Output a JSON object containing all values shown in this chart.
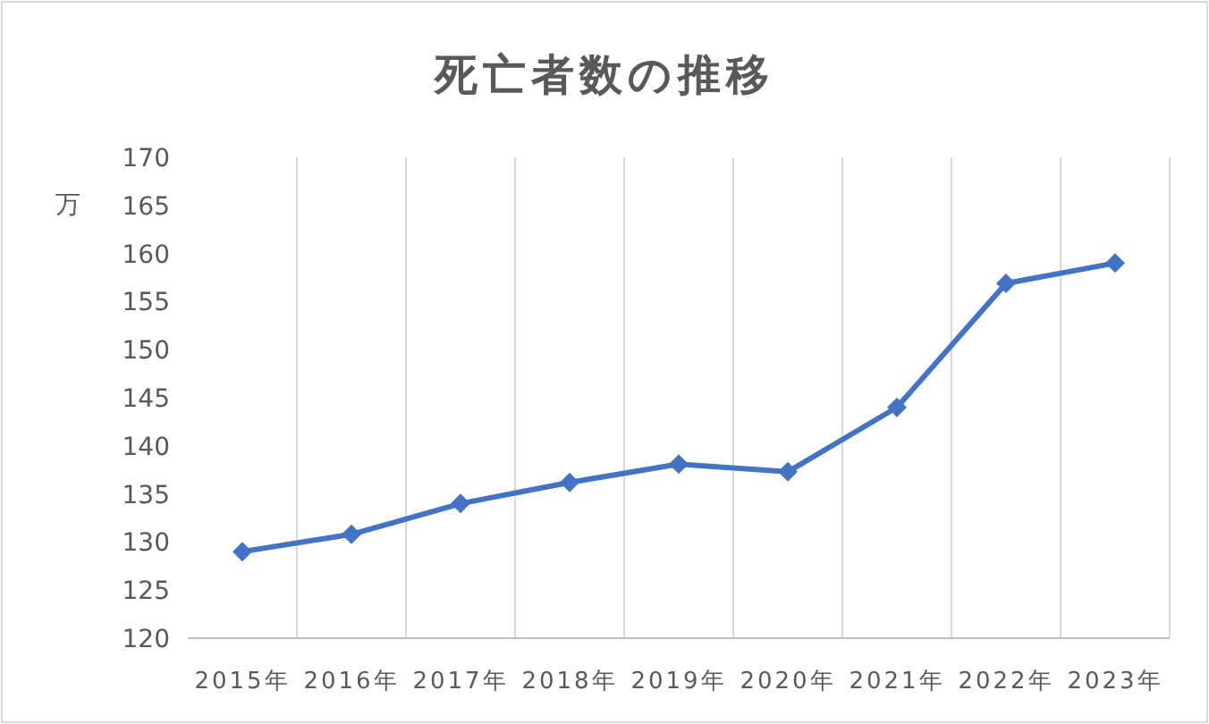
{
  "chart_data": {
    "type": "line",
    "title": "死亡者数の推移",
    "ylabel": "万",
    "categories": [
      "2015年",
      "2016年",
      "2017年",
      "2018年",
      "2019年",
      "2020年",
      "2021年",
      "2022年",
      "2023年"
    ],
    "series": [
      {
        "color": "#4472c4",
        "values": [
          129.0,
          130.8,
          134.0,
          136.2,
          138.1,
          137.3,
          144.0,
          156.9,
          159.0
        ]
      }
    ],
    "ylim": [
      120,
      170
    ],
    "yticks": [
      120,
      125,
      130,
      135,
      140,
      145,
      150,
      155,
      160,
      165,
      170
    ],
    "grid": "x",
    "marker": "diamond",
    "line_style": "solid"
  }
}
